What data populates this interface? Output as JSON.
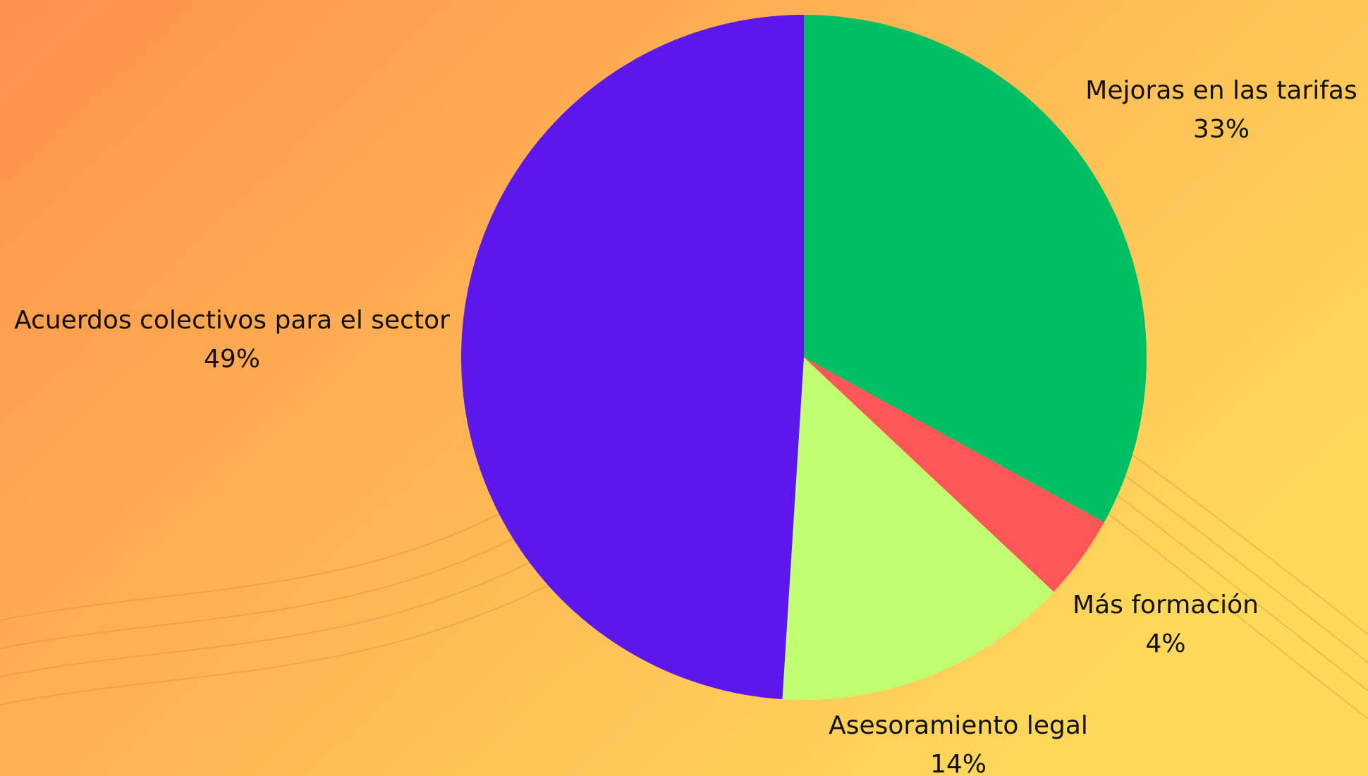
{
  "chart_data": {
    "type": "pie",
    "categories": [
      "Mejoras en las tarifas",
      "Más formación",
      "Asesoramiento legal",
      "Acuerdos colectivos para el sector"
    ],
    "values": [
      33,
      4,
      14,
      49
    ],
    "value_labels": [
      "33%",
      "4%",
      "14%",
      "49%"
    ],
    "colors": [
      "#00bf63",
      "#ff5757",
      "#c1ff72",
      "#5e17eb"
    ]
  }
}
